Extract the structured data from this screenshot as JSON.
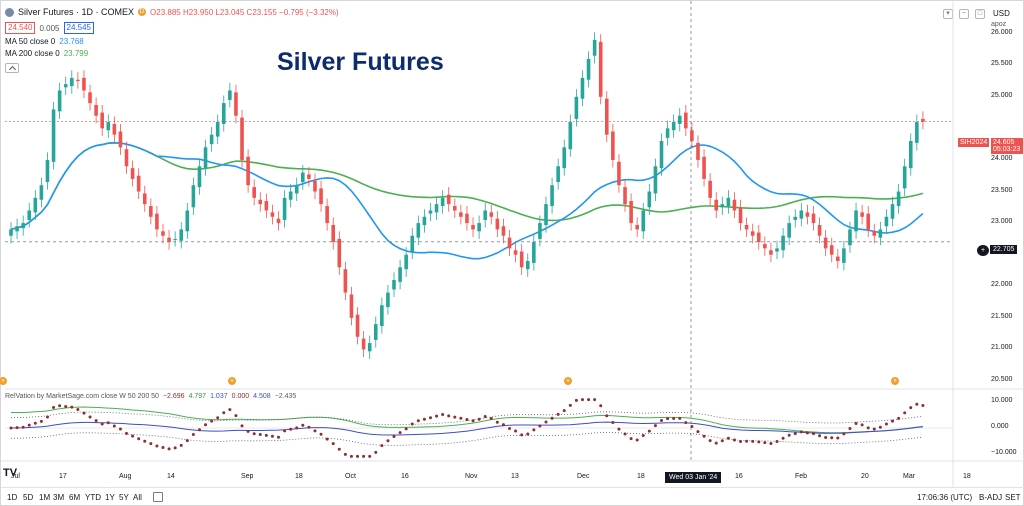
{
  "header": {
    "symbol_title": "Silver Futures · 1D · COMEX",
    "status_letter": "D",
    "ohlc": "O23.885 H23.950 L23.045 C23.155 −0.795 (−3.32%)",
    "bid": "24.540",
    "spread": "0.005",
    "ask": "24.545",
    "ma50_label": "MA 50 close 0",
    "ma50_value": "23.768",
    "ma200_label": "MA 200 close 0",
    "ma200_value": "23.799",
    "currency": "USD",
    "unit": "apoz"
  },
  "overlay_title": "Silver Futures",
  "price_axis": {
    "ticks": [
      "26.000",
      "25.500",
      "25.000",
      "24.000",
      "23.500",
      "23.000",
      "22.000",
      "21.500",
      "21.000",
      "20.500"
    ],
    "last_symbol": "SIH2024",
    "last_price": "24.605",
    "countdown": "05:03:23",
    "crosshair_price": "22.705"
  },
  "time_axis": {
    "ticks": [
      "Jul",
      "17",
      "Aug",
      "14",
      "Sep",
      "18",
      "Oct",
      "16",
      "Nov",
      "13",
      "Dec",
      "18",
      "16",
      "Feb",
      "20",
      "Mar",
      "18"
    ],
    "crosshair_label": "Wed 03 Jan '24"
  },
  "indicator": {
    "label": "RelVation by MarketSage.com close W 50 200 50",
    "values": [
      "−2.696",
      "4.797",
      "1.037",
      "0.000",
      "4.508",
      "−2.435"
    ],
    "value_colors": [
      "#8b2f2f",
      "#2e9d3a",
      "#3e4dc9",
      "#8b2f2f",
      "#3e4dc9",
      "#555b6e"
    ],
    "ticks": [
      "10.000",
      "0.000",
      "−10.000"
    ]
  },
  "ranges": [
    "1D",
    "5D",
    "1M",
    "3M",
    "6M",
    "YTD",
    "1Y",
    "5Y",
    "All"
  ],
  "footer": {
    "clock": "17:06:36 (UTC)",
    "badj": "B-ADJ",
    "set": "SET"
  },
  "colors": {
    "up": "#26a69a",
    "down": "#ef5350",
    "ma50": "#2196f3",
    "ma200": "#4caf50"
  },
  "chart_data": {
    "type": "candlestick",
    "series": [
      {
        "name": "MA 50 close 0",
        "last": 23.768
      },
      {
        "name": "MA 200 close 0",
        "last": 23.799
      }
    ],
    "ylim": [
      20.5,
      26.2
    ],
    "last_close": 24.605,
    "closes": [
      22.9,
      22.95,
      23.0,
      23.2,
      23.4,
      23.6,
      24.0,
      24.8,
      25.1,
      25.2,
      25.3,
      25.25,
      25.1,
      24.9,
      24.7,
      24.5,
      24.6,
      24.4,
      24.2,
      23.9,
      23.7,
      23.5,
      23.3,
      23.1,
      22.9,
      22.8,
      22.7,
      22.75,
      22.9,
      23.2,
      23.6,
      23.9,
      24.2,
      24.4,
      24.6,
      24.9,
      25.1,
      24.7,
      24.0,
      23.6,
      23.4,
      23.3,
      23.2,
      23.1,
      23.0,
      23.4,
      23.5,
      23.6,
      23.8,
      23.7,
      23.5,
      23.3,
      23.0,
      22.7,
      22.3,
      21.9,
      21.5,
      21.2,
      21.0,
      21.1,
      21.4,
      21.7,
      21.9,
      22.1,
      22.3,
      22.5,
      22.8,
      23.0,
      23.1,
      23.2,
      23.3,
      23.4,
      23.3,
      23.2,
      23.1,
      23.0,
      22.9,
      23.0,
      23.2,
      23.1,
      22.9,
      22.8,
      22.6,
      22.5,
      22.3,
      22.4,
      22.7,
      23.0,
      23.3,
      23.6,
      23.9,
      24.2,
      24.6,
      25.0,
      25.3,
      25.6,
      25.9,
      25.0,
      24.4,
      24.0,
      23.6,
      23.3,
      23.0,
      22.9,
      23.2,
      23.5,
      23.9,
      24.3,
      24.5,
      24.6,
      24.7,
      24.5,
      24.3,
      24.0,
      23.7,
      23.4,
      23.2,
      23.3,
      23.4,
      23.2,
      23.0,
      22.9,
      22.8,
      22.7,
      22.6,
      22.5,
      22.6,
      22.8,
      23.0,
      23.1,
      23.2,
      23.1,
      23.0,
      22.8,
      22.6,
      22.5,
      22.4,
      22.6,
      22.9,
      23.2,
      23.1,
      22.9,
      22.8,
      22.9,
      23.1,
      23.3,
      23.5,
      23.9,
      24.3,
      24.6,
      24.605
    ]
  }
}
